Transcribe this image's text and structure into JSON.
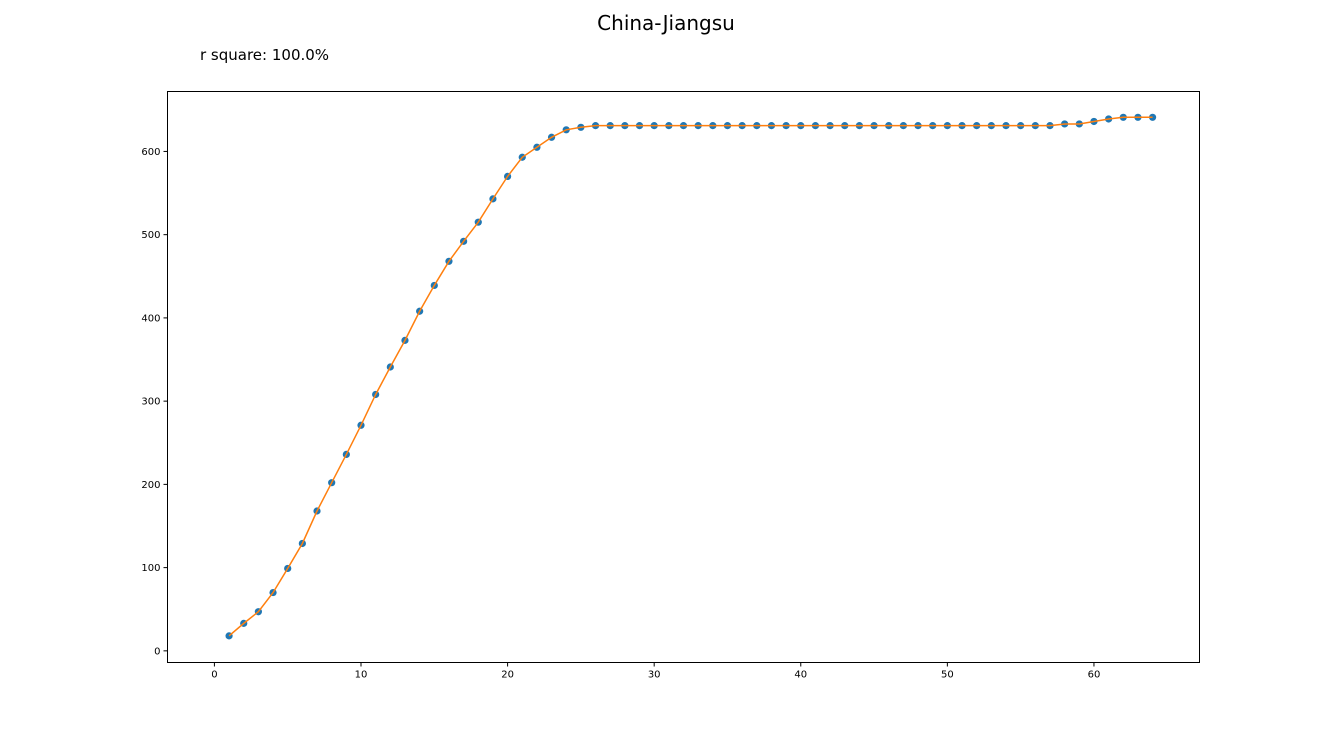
{
  "chart_data": {
    "type": "scatter",
    "title": "China-Jiangsu",
    "subtitle": "r square: 100.0%",
    "xlabel": "",
    "ylabel": "",
    "xlim": [
      -3.2,
      67.2
    ],
    "ylim": [
      -14,
      672
    ],
    "xticks": [
      0,
      10,
      20,
      30,
      40,
      50,
      60
    ],
    "yticks": [
      0,
      100,
      200,
      300,
      400,
      500,
      600
    ],
    "grid": false,
    "series": [
      {
        "kind": "scatter",
        "color": "#1f77b4",
        "x": [
          1,
          2,
          3,
          4,
          5,
          6,
          7,
          8,
          9,
          10,
          11,
          12,
          13,
          14,
          15,
          16,
          17,
          18,
          19,
          20,
          21,
          22,
          23,
          24,
          25,
          26,
          27,
          28,
          29,
          30,
          31,
          32,
          33,
          34,
          35,
          36,
          37,
          38,
          39,
          40,
          41,
          42,
          43,
          44,
          45,
          46,
          47,
          48,
          49,
          50,
          51,
          52,
          53,
          54,
          55,
          56,
          57,
          58,
          59,
          60,
          61,
          62,
          63,
          64
        ],
        "y": [
          18,
          33,
          47,
          70,
          99,
          129,
          168,
          202,
          236,
          271,
          308,
          341,
          373,
          408,
          439,
          468,
          492,
          515,
          543,
          570,
          593,
          605,
          617,
          626,
          629,
          631,
          631,
          631,
          631,
          631,
          631,
          631,
          631,
          631,
          631,
          631,
          631,
          631,
          631,
          631,
          631,
          631,
          631,
          631,
          631,
          631,
          631,
          631,
          631,
          631,
          631,
          631,
          631,
          631,
          631,
          631,
          631,
          633,
          633,
          636,
          639,
          641,
          641,
          641
        ]
      },
      {
        "kind": "line",
        "color": "#ff7f0e",
        "x": [
          1,
          2,
          3,
          4,
          5,
          6,
          7,
          8,
          9,
          10,
          11,
          12,
          13,
          14,
          15,
          16,
          17,
          18,
          19,
          20,
          21,
          22,
          23,
          24,
          25,
          26,
          27,
          28,
          29,
          30,
          31,
          32,
          33,
          34,
          35,
          36,
          37,
          38,
          39,
          40,
          41,
          42,
          43,
          44,
          45,
          46,
          47,
          48,
          49,
          50,
          51,
          52,
          53,
          54,
          55,
          56,
          57,
          58,
          59,
          60,
          61,
          62,
          63,
          64
        ],
        "y": [
          18,
          33,
          47,
          70,
          99,
          129,
          168,
          202,
          236,
          271,
          308,
          341,
          373,
          408,
          439,
          468,
          492,
          515,
          543,
          570,
          593,
          605,
          617,
          626,
          629,
          631,
          631,
          631,
          631,
          631,
          631,
          631,
          631,
          631,
          631,
          631,
          631,
          631,
          631,
          631,
          631,
          631,
          631,
          631,
          631,
          631,
          631,
          631,
          631,
          631,
          631,
          631,
          631,
          631,
          631,
          631,
          631,
          633,
          633,
          636,
          639,
          641,
          641,
          641
        ]
      }
    ]
  }
}
